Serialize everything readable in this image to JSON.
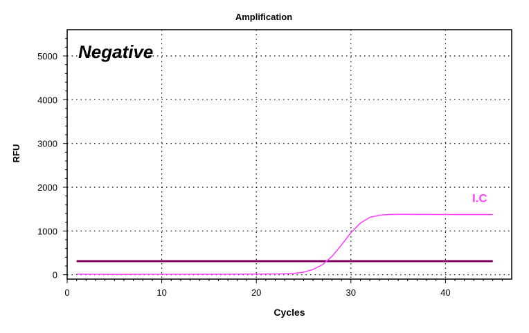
{
  "chart_data": {
    "type": "line",
    "title": "Amplification",
    "xlabel": "Cycles",
    "ylabel": "RFU",
    "xlim": [
      0,
      47
    ],
    "ylim": [
      -100,
      5600
    ],
    "x_ticks": [
      0,
      10,
      20,
      30,
      40
    ],
    "y_ticks": [
      0,
      1000,
      2000,
      3000,
      4000,
      5000
    ],
    "grid": true,
    "annotation": {
      "text": "Negative",
      "style": "bold italic"
    },
    "series": [
      {
        "name": "I.C",
        "color": "#ff44ff",
        "x": [
          1,
          2,
          3,
          4,
          5,
          6,
          7,
          8,
          9,
          10,
          11,
          12,
          13,
          14,
          15,
          16,
          17,
          18,
          19,
          20,
          21,
          22,
          23,
          24,
          25,
          26,
          27,
          28,
          29,
          30,
          31,
          32,
          33,
          34,
          35,
          36,
          37,
          38,
          39,
          40,
          41,
          42,
          43,
          44,
          45
        ],
        "y": [
          15,
          12,
          10,
          9,
          8,
          8,
          9,
          10,
          10,
          11,
          10,
          10,
          11,
          12,
          12,
          12,
          13,
          14,
          15,
          16,
          17,
          19,
          22,
          30,
          60,
          120,
          230,
          420,
          680,
          960,
          1180,
          1310,
          1360,
          1375,
          1380,
          1380,
          1378,
          1378,
          1377,
          1376,
          1375,
          1375,
          1375,
          1375,
          1375
        ]
      }
    ],
    "threshold": {
      "value": 310,
      "x_range": [
        1,
        45
      ],
      "color": "#800060"
    }
  }
}
